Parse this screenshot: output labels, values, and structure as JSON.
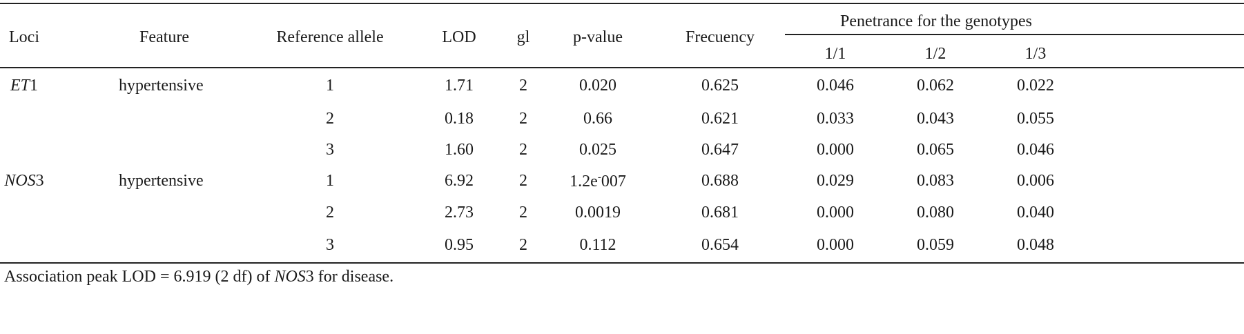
{
  "table": {
    "headers": {
      "loci": "Loci",
      "feature": "Feature",
      "reference_allele": "Reference allele",
      "lod": "LOD",
      "gl": "gl",
      "p_value": "p-value",
      "frequency": "Frecuency",
      "penetrance_group": "Penetrance for the genotypes",
      "genotype_11": "1/1",
      "genotype_12": "1/2",
      "genotype_13": "1/3"
    },
    "rows": [
      {
        "locus_italic": "ET",
        "locus_rest": "1",
        "feature": "hypertensive",
        "ref": "1",
        "lod": "1.71",
        "gl": "2",
        "p_value": "0.020",
        "p_exp": "",
        "freq": "0.625",
        "g11": "0.046",
        "g12": "0.062",
        "g13": "0.022"
      },
      {
        "locus_italic": "",
        "locus_rest": "",
        "feature": "",
        "ref": "2",
        "lod": "0.18",
        "gl": "2",
        "p_value": "0.66",
        "p_exp": "",
        "freq": "0.621",
        "g11": "0.033",
        "g12": "0.043",
        "g13": "0.055"
      },
      {
        "locus_italic": "",
        "locus_rest": "",
        "feature": "",
        "ref": "3",
        "lod": "1.60",
        "gl": "2",
        "p_value": "0.025",
        "p_exp": "",
        "freq": "0.647",
        "g11": "0.000",
        "g12": "0.065",
        "g13": "0.046"
      },
      {
        "locus_italic": "NOS",
        "locus_rest": "3",
        "feature": "hypertensive",
        "ref": "1",
        "lod": "6.92",
        "gl": "2",
        "p_value": "1.2e",
        "p_exp": "-",
        "p_tail": "007",
        "freq": "0.688",
        "g11": "0.029",
        "g12": "0.083",
        "g13": "0.006"
      },
      {
        "locus_italic": "",
        "locus_rest": "",
        "feature": "",
        "ref": "2",
        "lod": "2.73",
        "gl": "2",
        "p_value": "0.0019",
        "p_exp": "",
        "freq": "0.681",
        "g11": "0.000",
        "g12": "0.080",
        "g13": "0.040"
      },
      {
        "locus_italic": "",
        "locus_rest": "",
        "feature": "",
        "ref": "3",
        "lod": "0.95",
        "gl": "2",
        "p_value": "0.112",
        "p_exp": "",
        "freq": "0.654",
        "g11": "0.000",
        "g12": "0.059",
        "g13": "0.048"
      }
    ]
  },
  "footnote": {
    "prefix": "Association peak LOD = 6.919 (2 df) of ",
    "locus_italic": "NOS",
    "locus_rest": "3",
    "suffix": " for disease."
  }
}
